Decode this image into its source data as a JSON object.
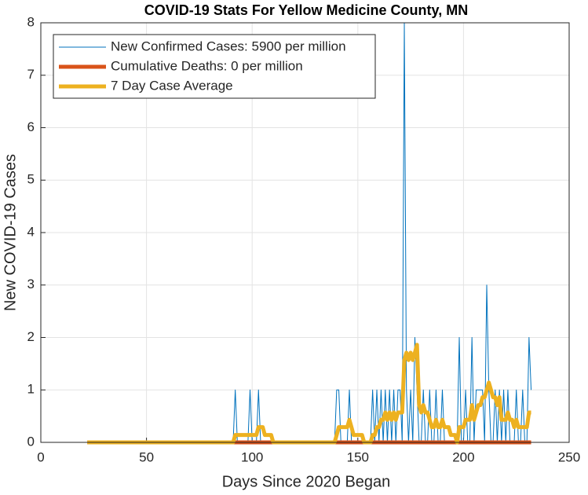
{
  "chart_data": {
    "type": "line",
    "title": "COVID-19 Stats For Yellow Medicine County, MN",
    "x_label": "Days Since 2020 Began",
    "y_label": "New COVID-19 Cases",
    "xlim": [
      0,
      250
    ],
    "xticks": [
      0,
      50,
      100,
      150,
      200,
      250
    ],
    "ylim": [
      0,
      8
    ],
    "yticks": [
      0,
      1,
      2,
      3,
      4,
      5,
      6,
      7,
      8
    ],
    "grid": true,
    "legend": "northwest",
    "x": [
      22,
      23,
      24,
      25,
      26,
      27,
      28,
      29,
      30,
      31,
      32,
      33,
      34,
      35,
      36,
      37,
      38,
      39,
      40,
      41,
      42,
      43,
      44,
      45,
      46,
      47,
      48,
      49,
      50,
      51,
      52,
      53,
      54,
      55,
      56,
      57,
      58,
      59,
      60,
      61,
      62,
      63,
      64,
      65,
      66,
      67,
      68,
      69,
      70,
      71,
      72,
      73,
      74,
      75,
      76,
      77,
      78,
      79,
      80,
      81,
      82,
      83,
      84,
      85,
      86,
      87,
      88,
      89,
      90,
      91,
      92,
      93,
      94,
      95,
      96,
      97,
      98,
      99,
      100,
      101,
      102,
      103,
      104,
      105,
      106,
      107,
      108,
      109,
      110,
      111,
      112,
      113,
      114,
      115,
      116,
      117,
      118,
      119,
      120,
      121,
      122,
      123,
      124,
      125,
      126,
      127,
      128,
      129,
      130,
      131,
      132,
      133,
      134,
      135,
      136,
      137,
      138,
      139,
      140,
      141,
      142,
      143,
      144,
      145,
      146,
      147,
      148,
      149,
      150,
      151,
      152,
      153,
      154,
      155,
      156,
      157,
      158,
      159,
      160,
      161,
      162,
      163,
      164,
      165,
      166,
      167,
      168,
      169,
      170,
      171,
      172,
      173,
      174,
      175,
      176,
      177,
      178,
      179,
      180,
      181,
      182,
      183,
      184,
      185,
      186,
      187,
      188,
      189,
      190,
      191,
      192,
      193,
      194,
      195,
      196,
      197,
      198,
      199,
      200,
      201,
      202,
      203,
      204,
      205,
      206,
      207,
      208,
      209,
      210,
      211,
      212,
      213,
      214,
      215,
      216,
      217,
      218,
      219,
      220,
      221,
      222,
      223,
      224,
      225,
      226,
      227,
      228,
      229,
      230,
      231,
      232
    ],
    "series": [
      {
        "name": "New Confirmed Cases: 5900 per million",
        "color": "#0072bd",
        "width": 1,
        "values": [
          0,
          0,
          0,
          0,
          0,
          0,
          0,
          0,
          0,
          0,
          0,
          0,
          0,
          0,
          0,
          0,
          0,
          0,
          0,
          0,
          0,
          0,
          0,
          0,
          0,
          0,
          0,
          0,
          0,
          0,
          0,
          0,
          0,
          0,
          0,
          0,
          0,
          0,
          0,
          0,
          0,
          0,
          0,
          0,
          0,
          0,
          0,
          0,
          0,
          0,
          0,
          0,
          0,
          0,
          0,
          0,
          0,
          0,
          0,
          0,
          0,
          0,
          0,
          0,
          0,
          0,
          0,
          0,
          0,
          0,
          1,
          0,
          0,
          0,
          0,
          0,
          0,
          1,
          0,
          0,
          0,
          1,
          0,
          0,
          0,
          0,
          0,
          0,
          0,
          0,
          0,
          0,
          0,
          0,
          0,
          0,
          0,
          0,
          0,
          0,
          0,
          0,
          0,
          0,
          0,
          0,
          0,
          0,
          0,
          0,
          0,
          0,
          0,
          0,
          0,
          0,
          0,
          0,
          1,
          1,
          0,
          0,
          0,
          0,
          1,
          0,
          0,
          0,
          0,
          0,
          0,
          0,
          0,
          0,
          0,
          1,
          0,
          1,
          0,
          1,
          0,
          1,
          0,
          1,
          0,
          1,
          0,
          1,
          1,
          0,
          8,
          1,
          0,
          1,
          0,
          2,
          1,
          0,
          0,
          1,
          0,
          0,
          1,
          0,
          0,
          1,
          0,
          0,
          1,
          0,
          0,
          0,
          0,
          0,
          0,
          0,
          2,
          0,
          0,
          1,
          0,
          0,
          2,
          0,
          1,
          1,
          1,
          1,
          0,
          3,
          1,
          0,
          0,
          1,
          0,
          1,
          0,
          1,
          0,
          1,
          0,
          0,
          0,
          1,
          0,
          0,
          1,
          0,
          0,
          2,
          1
        ]
      },
      {
        "name": "Cumulative Deaths: 0 per million",
        "color": "#d95319",
        "width": 5,
        "values": [
          0,
          0,
          0,
          0,
          0,
          0,
          0,
          0,
          0,
          0,
          0,
          0,
          0,
          0,
          0,
          0,
          0,
          0,
          0,
          0,
          0,
          0,
          0,
          0,
          0,
          0,
          0,
          0,
          0,
          0,
          0,
          0,
          0,
          0,
          0,
          0,
          0,
          0,
          0,
          0,
          0,
          0,
          0,
          0,
          0,
          0,
          0,
          0,
          0,
          0,
          0,
          0,
          0,
          0,
          0,
          0,
          0,
          0,
          0,
          0,
          0,
          0,
          0,
          0,
          0,
          0,
          0,
          0,
          0,
          0,
          0,
          0,
          0,
          0,
          0,
          0,
          0,
          0,
          0,
          0,
          0,
          0,
          0,
          0,
          0,
          0,
          0,
          0,
          0,
          0,
          0,
          0,
          0,
          0,
          0,
          0,
          0,
          0,
          0,
          0,
          0,
          0,
          0,
          0,
          0,
          0,
          0,
          0,
          0,
          0,
          0,
          0,
          0,
          0,
          0,
          0,
          0,
          0,
          0,
          0,
          0,
          0,
          0,
          0,
          0,
          0,
          0,
          0,
          0,
          0,
          0,
          0,
          0,
          0,
          0,
          0,
          0,
          0,
          0,
          0,
          0,
          0,
          0,
          0,
          0,
          0,
          0,
          0,
          0,
          0,
          0,
          0,
          0,
          0,
          0,
          0,
          0,
          0,
          0,
          0,
          0,
          0,
          0,
          0,
          0,
          0,
          0,
          0,
          0,
          0,
          0,
          0,
          0,
          0,
          0,
          0,
          0,
          0,
          0,
          0,
          0,
          0,
          0,
          0,
          0,
          0,
          0,
          0,
          0,
          0,
          0,
          0,
          0,
          0,
          0,
          0,
          0,
          0,
          0,
          0,
          0,
          0,
          0,
          0,
          0,
          0,
          0,
          0,
          0,
          0,
          0
        ]
      },
      {
        "name": "7 Day Case Average",
        "color": "#edb120",
        "width": 5,
        "values": [
          0,
          0,
          0,
          0,
          0,
          0,
          0,
          0,
          0,
          0,
          0,
          0,
          0,
          0,
          0,
          0,
          0,
          0,
          0,
          0,
          0,
          0,
          0,
          0,
          0,
          0,
          0,
          0,
          0,
          0,
          0,
          0,
          0,
          0,
          0,
          0,
          0,
          0,
          0,
          0,
          0,
          0,
          0,
          0,
          0,
          0,
          0,
          0,
          0,
          0,
          0,
          0,
          0,
          0,
          0,
          0,
          0,
          0,
          0,
          0,
          0,
          0,
          0,
          0,
          0,
          0,
          0,
          0,
          0,
          0,
          0.14,
          0.14,
          0.14,
          0.14,
          0.14,
          0.14,
          0.14,
          0.14,
          0.14,
          0.14,
          0.14,
          0.29,
          0.29,
          0.29,
          0.14,
          0.14,
          0.14,
          0.14,
          0,
          0,
          0,
          0,
          0,
          0,
          0,
          0,
          0,
          0,
          0,
          0,
          0,
          0,
          0,
          0,
          0,
          0,
          0,
          0,
          0,
          0,
          0,
          0,
          0,
          0,
          0,
          0,
          0,
          0,
          0.14,
          0.29,
          0.29,
          0.29,
          0.29,
          0.29,
          0.43,
          0.29,
          0.14,
          0.14,
          0.14,
          0.14,
          0.14,
          0,
          0,
          0,
          0,
          0.14,
          0.14,
          0.29,
          0.29,
          0.43,
          0.43,
          0.57,
          0.43,
          0.57,
          0.43,
          0.57,
          0.43,
          0.57,
          0.57,
          0.57,
          1.57,
          1.71,
          1.57,
          1.71,
          1.57,
          1.71,
          1.86,
          0.71,
          0.57,
          0.71,
          0.57,
          0.57,
          0.43,
          0.29,
          0.29,
          0.43,
          0.29,
          0.29,
          0.43,
          0.29,
          0.29,
          0.29,
          0.14,
          0.14,
          0.14,
          0,
          0.29,
          0.29,
          0.29,
          0.43,
          0.43,
          0.43,
          0.71,
          0.43,
          0.57,
          0.71,
          0.71,
          0.86,
          0.86,
          1,
          1.14,
          1,
          0.86,
          0.86,
          0.71,
          0.86,
          0.43,
          0.43,
          0.43,
          0.57,
          0.43,
          0.43,
          0.29,
          0.43,
          0.29,
          0.29,
          0.29,
          0.29,
          0.29,
          0.57,
          0.57
        ]
      }
    ]
  }
}
